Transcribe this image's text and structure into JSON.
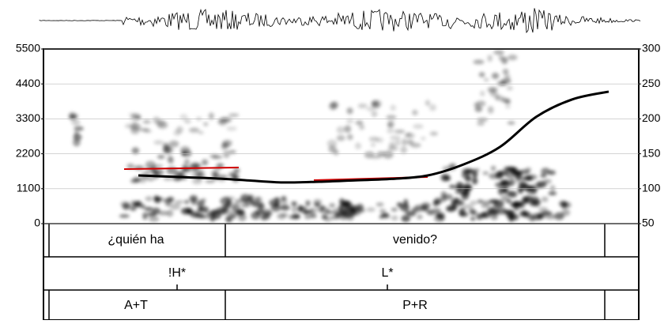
{
  "chart_data": {
    "type": "line",
    "categories": [
      null,
      null,
      null,
      null,
      null,
      null,
      null,
      null,
      null,
      null,
      null,
      null,
      null,
      null
    ],
    "series": [
      {
        "color": "#000000",
        "axis": "y2",
        "values": [
          119,
          117,
          115,
          112,
          109,
          110,
          112,
          114,
          119,
          135,
          160,
          203,
          228,
          239
        ]
      }
    ],
    "ylim": [
      0,
      5500
    ],
    "yticks": [
      0,
      1100,
      2200,
      3300,
      4400,
      5500
    ],
    "y2lim": [
      50,
      300
    ],
    "y2ticks": [
      50,
      100,
      150,
      200,
      250,
      300
    ],
    "grid": true,
    "tiers": [
      [
        "¿quién ha",
        "venido?"
      ],
      [
        "!H*",
        "L*"
      ],
      [
        "A+T",
        "P+R"
      ]
    ]
  }
}
